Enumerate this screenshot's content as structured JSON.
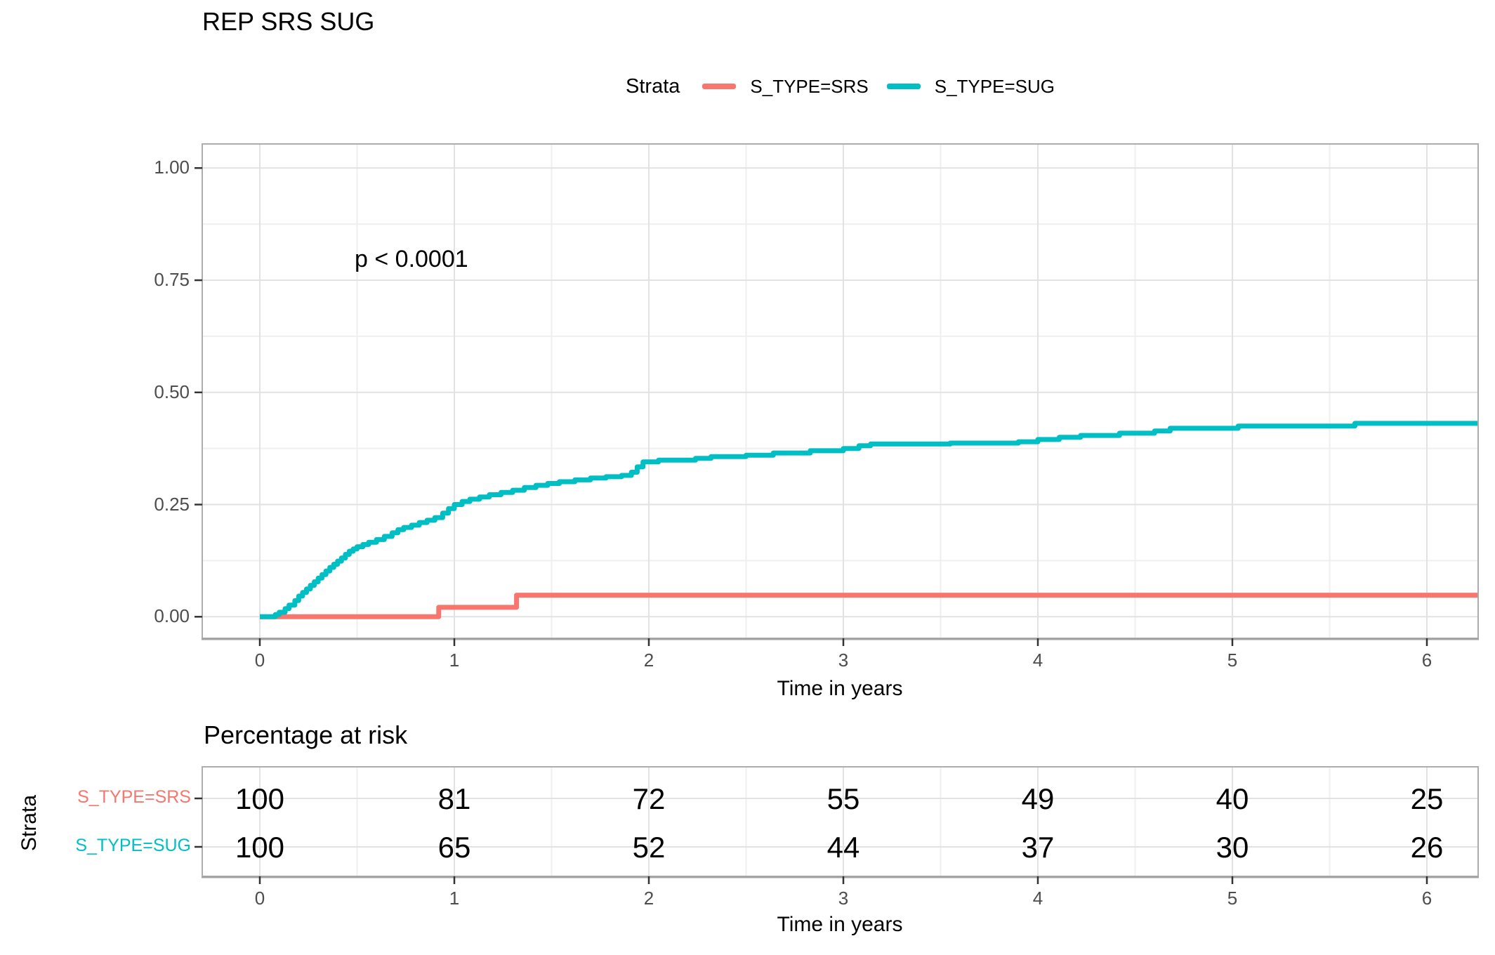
{
  "title": "REP SRS SUG",
  "legend": {
    "title": "Strata",
    "items": [
      {
        "label": "S_TYPE=SRS",
        "color": "#F8766D"
      },
      {
        "label": "S_TYPE=SUG",
        "color": "#00BFC4"
      }
    ]
  },
  "annotation": {
    "p_value": "p < 0.0001"
  },
  "axes": {
    "x": {
      "label": "Time in years",
      "tick_labels": [
        "0",
        "1",
        "2",
        "3",
        "4",
        "5",
        "6"
      ],
      "tick_values": [
        0,
        1,
        2,
        3,
        4,
        5,
        6
      ],
      "minor_ticks": [
        0.5,
        1.5,
        2.5,
        3.5,
        4.5,
        5.5
      ]
    },
    "y": {
      "tick_labels": [
        "0.00",
        "0.25",
        "0.50",
        "0.75",
        "1.00"
      ],
      "tick_values": [
        0,
        0.25,
        0.5,
        0.75,
        1
      ],
      "minor_ticks": [
        0.125,
        0.375,
        0.625,
        0.875
      ]
    }
  },
  "risk_table": {
    "title": "Percentage at risk",
    "axis_label": "Strata",
    "x_label": "Time in years",
    "tick_labels": [
      "0",
      "1",
      "2",
      "3",
      "4",
      "5",
      "6"
    ],
    "rows": [
      {
        "label": "S_TYPE=SRS",
        "color": "#F8766D",
        "values": [
          100,
          81,
          72,
          55,
          49,
          40,
          25
        ]
      },
      {
        "label": "S_TYPE=SUG",
        "color": "#00BFC4",
        "values": [
          100,
          65,
          52,
          44,
          37,
          30,
          26
        ]
      }
    ]
  },
  "chart_data": {
    "type": "line",
    "subtype": "kaplan-meier-cumulative-incidence-step",
    "title": "REP SRS SUG",
    "xlabel": "Time in years",
    "ylabel": "",
    "xlim": [
      0,
      6.3
    ],
    "ylim": [
      0,
      1.0
    ],
    "grid": true,
    "legend_position": "top",
    "p_value": "p < 0.0001",
    "series": [
      {
        "name": "S_TYPE=SRS",
        "color": "#F8766D",
        "step": true,
        "points": [
          [
            0,
            0
          ],
          [
            0.92,
            0.021
          ],
          [
            1.32,
            0.048
          ],
          [
            6.26,
            0.048
          ]
        ]
      },
      {
        "name": "S_TYPE=SUG",
        "color": "#00BFC4",
        "step": true,
        "points": [
          [
            0,
            0
          ],
          [
            0.08,
            0.005
          ],
          [
            0.1,
            0.01
          ],
          [
            0.13,
            0.018
          ],
          [
            0.15,
            0.026
          ],
          [
            0.18,
            0.036
          ],
          [
            0.2,
            0.046
          ],
          [
            0.22,
            0.054
          ],
          [
            0.24,
            0.062
          ],
          [
            0.26,
            0.07
          ],
          [
            0.28,
            0.078
          ],
          [
            0.3,
            0.086
          ],
          [
            0.32,
            0.094
          ],
          [
            0.34,
            0.102
          ],
          [
            0.36,
            0.11
          ],
          [
            0.38,
            0.117
          ],
          [
            0.4,
            0.124
          ],
          [
            0.42,
            0.131
          ],
          [
            0.44,
            0.139
          ],
          [
            0.46,
            0.146
          ],
          [
            0.48,
            0.151
          ],
          [
            0.5,
            0.156
          ],
          [
            0.53,
            0.161
          ],
          [
            0.56,
            0.166
          ],
          [
            0.6,
            0.172
          ],
          [
            0.64,
            0.179
          ],
          [
            0.68,
            0.187
          ],
          [
            0.71,
            0.194
          ],
          [
            0.74,
            0.199
          ],
          [
            0.78,
            0.204
          ],
          [
            0.82,
            0.21
          ],
          [
            0.86,
            0.215
          ],
          [
            0.9,
            0.221
          ],
          [
            0.94,
            0.231
          ],
          [
            0.97,
            0.241
          ],
          [
            1.0,
            0.25
          ],
          [
            1.04,
            0.257
          ],
          [
            1.08,
            0.262
          ],
          [
            1.13,
            0.267
          ],
          [
            1.18,
            0.272
          ],
          [
            1.24,
            0.277
          ],
          [
            1.3,
            0.282
          ],
          [
            1.36,
            0.288
          ],
          [
            1.42,
            0.293
          ],
          [
            1.48,
            0.297
          ],
          [
            1.54,
            0.301
          ],
          [
            1.62,
            0.305
          ],
          [
            1.7,
            0.309
          ],
          [
            1.78,
            0.312
          ],
          [
            1.86,
            0.315
          ],
          [
            1.91,
            0.322
          ],
          [
            1.94,
            0.334
          ],
          [
            1.97,
            0.345
          ],
          [
            2.05,
            0.349
          ],
          [
            2.24,
            0.353
          ],
          [
            2.32,
            0.357
          ],
          [
            2.5,
            0.36
          ],
          [
            2.64,
            0.365
          ],
          [
            2.83,
            0.37
          ],
          [
            3.0,
            0.375
          ],
          [
            3.08,
            0.381
          ],
          [
            3.14,
            0.385
          ],
          [
            3.55,
            0.387
          ],
          [
            3.9,
            0.39
          ],
          [
            4.0,
            0.395
          ],
          [
            4.11,
            0.4
          ],
          [
            4.22,
            0.404
          ],
          [
            4.42,
            0.409
          ],
          [
            4.6,
            0.414
          ],
          [
            4.68,
            0.42
          ],
          [
            5.03,
            0.425
          ],
          [
            5.63,
            0.431
          ],
          [
            6.26,
            0.431
          ]
        ]
      }
    ],
    "risk_table": {
      "title": "Percentage at risk",
      "time_points": [
        0,
        1,
        2,
        3,
        4,
        5,
        6
      ],
      "SRS": [
        100,
        81,
        72,
        55,
        49,
        40,
        25
      ],
      "SUG": [
        100,
        65,
        52,
        44,
        37,
        30,
        26
      ]
    }
  },
  "style": {
    "grid_major": "#E2E2E2",
    "grid_minor": "#EFEFEF",
    "panel_border": "#ADADAD",
    "tick_color": "#333333",
    "tick_text": "#4D4D4D"
  }
}
